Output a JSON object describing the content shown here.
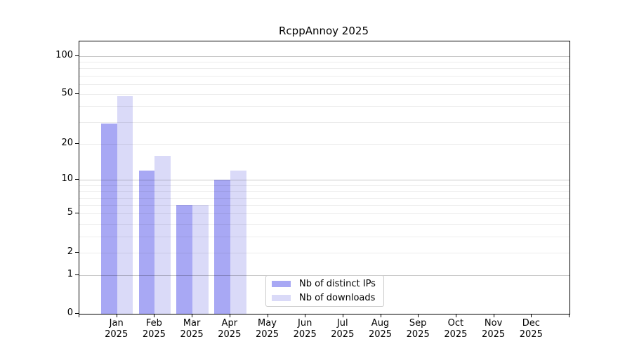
{
  "title": "RcppAnnoy 2025",
  "chart_data": {
    "type": "bar",
    "title": "RcppAnnoy 2025",
    "categories": [
      "Jan 2025",
      "Feb 2025",
      "Mar 2025",
      "Apr 2025",
      "May 2025",
      "Jun 2025",
      "Jul 2025",
      "Aug 2025",
      "Sep 2025",
      "Oct 2025",
      "Nov 2025",
      "Dec 2025"
    ],
    "x_tick_labels": [
      {
        "month": "Jan",
        "year": "2025"
      },
      {
        "month": "Feb",
        "year": "2025"
      },
      {
        "month": "Mar",
        "year": "2025"
      },
      {
        "month": "Apr",
        "year": "2025"
      },
      {
        "month": "May",
        "year": "2025"
      },
      {
        "month": "Jun",
        "year": "2025"
      },
      {
        "month": "Jul",
        "year": "2025"
      },
      {
        "month": "Aug",
        "year": "2025"
      },
      {
        "month": "Sep",
        "year": "2025"
      },
      {
        "month": "Oct",
        "year": "2025"
      },
      {
        "month": "Nov",
        "year": "2025"
      },
      {
        "month": "Dec",
        "year": "2025"
      }
    ],
    "series": [
      {
        "name": "Nb of distinct IPs",
        "color": "#a8a8f4",
        "values": [
          29,
          12,
          6,
          10,
          0,
          0,
          0,
          0,
          0,
          0,
          0,
          0
        ]
      },
      {
        "name": "Nb of downloads",
        "color": "#dadaf8",
        "values": [
          48,
          16,
          6,
          12,
          0,
          0,
          0,
          0,
          0,
          0,
          0,
          0
        ]
      }
    ],
    "yscale": "log1p",
    "ylim": [
      0,
      130
    ],
    "y_tick_values": [
      0,
      1,
      2,
      5,
      10,
      20,
      50,
      100
    ],
    "y_minor_gridlines": [
      2,
      3,
      4,
      5,
      6,
      7,
      8,
      9,
      20,
      30,
      40,
      50,
      60,
      70,
      80,
      90
    ],
    "y_major_gridlines": [
      1,
      10,
      100
    ],
    "grid": "horizontal",
    "legend_position": "lower-center-right"
  },
  "legend": {
    "items": [
      {
        "label": "Nb of distinct IPs",
        "color": "#a8a8f4"
      },
      {
        "label": "Nb of downloads",
        "color": "#dadaf8"
      }
    ]
  }
}
